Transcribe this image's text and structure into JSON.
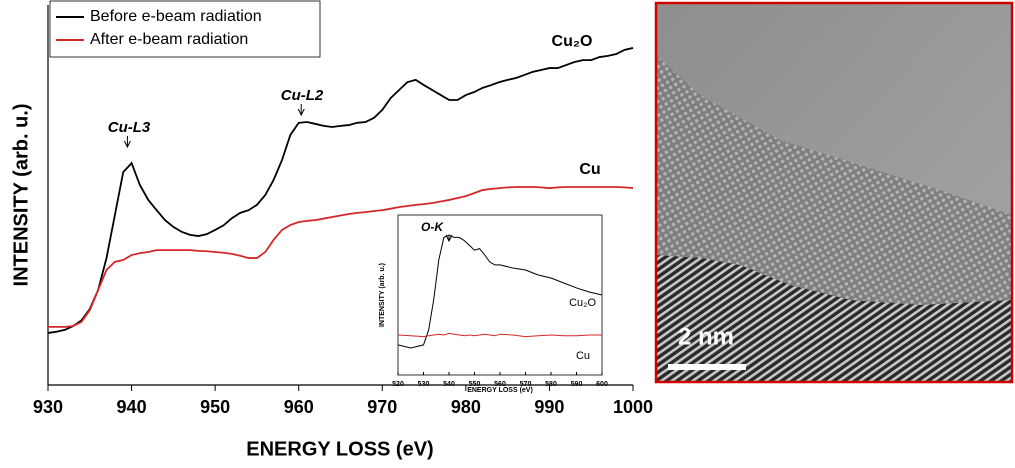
{
  "chart_data": [
    {
      "type": "line",
      "xlabel": "ENERGY LOSS (eV)",
      "ylabel": "INTENSITY (arb. u.)",
      "x": [
        930,
        931,
        932,
        933,
        934,
        935,
        936,
        937,
        938,
        939,
        940,
        941,
        942,
        943,
        944,
        945,
        946,
        947,
        948,
        949,
        950,
        951,
        952,
        953,
        954,
        955,
        956,
        957,
        958,
        959,
        960,
        961,
        962,
        963,
        964,
        965,
        966,
        967,
        968,
        969,
        970,
        971,
        972,
        973,
        974,
        975,
        976,
        977,
        978,
        979,
        980,
        981,
        982,
        983,
        984,
        985,
        986,
        987,
        988,
        989,
        990,
        991,
        992,
        993,
        994,
        995,
        996,
        997,
        998,
        999,
        1000
      ],
      "series": [
        {
          "name": "Before e-beam radiation",
          "color": "#000000",
          "values": [
            13.7,
            14,
            14.5,
            15.5,
            17,
            20,
            25,
            33.4,
            44.7,
            56,
            58.4,
            52.6,
            48.7,
            46,
            43.4,
            41.6,
            40.3,
            39.5,
            39.2,
            39.7,
            40.8,
            42,
            43.9,
            45.3,
            46,
            47.4,
            50,
            54,
            59.2,
            65.8,
            69,
            69.2,
            68.7,
            68.2,
            67.9,
            68.2,
            68.4,
            69,
            69.2,
            70.3,
            72.4,
            75.5,
            77.6,
            79.7,
            80.3,
            78.9,
            77.6,
            76.3,
            75,
            75,
            76.3,
            77.1,
            78.2,
            78.9,
            79.7,
            80.3,
            80.8,
            81.6,
            82.4,
            82.9,
            83.4,
            83.4,
            84.2,
            85,
            85.5,
            85.5,
            86.3,
            86.6,
            87.1,
            88.2,
            88.7
          ]
        },
        {
          "name": "After e-beam radiation",
          "color": "#d62728",
          "values": [
            15.3,
            15.3,
            15.3,
            15.5,
            16.6,
            19.7,
            25,
            30.3,
            32.4,
            32.9,
            34.2,
            34.7,
            35,
            35.5,
            35.5,
            35.5,
            35.5,
            35.5,
            35.3,
            35.2,
            35,
            34.8,
            34.5,
            34,
            33.4,
            33.4,
            35,
            38.2,
            40.8,
            42.1,
            42.9,
            43.2,
            43.4,
            43.8,
            44.2,
            44.6,
            45,
            45.3,
            45.5,
            45.8,
            46,
            46.4,
            46.8,
            47.1,
            47.4,
            47.6,
            47.9,
            48.3,
            48.7,
            49.2,
            49.7,
            50.5,
            51.3,
            51.6,
            51.8,
            52,
            52.1,
            52.1,
            52.1,
            52,
            51.8,
            52,
            52.1,
            52.1,
            52.1,
            52.1,
            52.1,
            52.1,
            52.1,
            52,
            51.8
          ]
        }
      ],
      "annotations": [
        "Cu-L3",
        "Cu-L2",
        "Cu₂O",
        "Cu"
      ],
      "xlim": [
        930,
        1000
      ],
      "xticks": [
        930,
        940,
        950,
        960,
        970,
        980,
        990,
        1000
      ],
      "ylim": [
        0,
        100
      ],
      "legend": "upper left"
    },
    {
      "type": "line",
      "xlabel": "ENERGY LOSS (eV)",
      "ylabel": "INTENSITY (arb. u.)",
      "x": [
        520,
        525,
        530,
        532,
        534,
        536,
        538,
        540,
        542,
        544,
        546,
        548,
        550,
        552,
        554,
        556,
        558,
        560,
        565,
        570,
        575,
        580,
        585,
        590,
        595,
        600
      ],
      "series": [
        {
          "name": "Cu₂O",
          "color": "#000000",
          "values": [
            18.8,
            16.9,
            18.8,
            28,
            47,
            72,
            86,
            87.5,
            86,
            86,
            84,
            81,
            78,
            79,
            75,
            70.6,
            68.8,
            68.8,
            66.9,
            65.6,
            62.5,
            60.6,
            57.5,
            54.4,
            51.9,
            50
          ]
        },
        {
          "name": "Cu",
          "color": "#d62728",
          "values": [
            25,
            24.5,
            24,
            24.5,
            25,
            25.5,
            25,
            26,
            25.5,
            25,
            24.5,
            25,
            24.5,
            25,
            25.5,
            25,
            24.5,
            25.5,
            25,
            24,
            24.5,
            25,
            24.5,
            24.5,
            25,
            25
          ]
        }
      ],
      "annotations": [
        "O-K"
      ],
      "xlim": [
        520,
        600
      ],
      "xticks": [
        520,
        530,
        540,
        550,
        560,
        570,
        580,
        590,
        600
      ],
      "ylim": [
        0,
        100
      ]
    }
  ],
  "image": {
    "scale_label": "2 nm"
  }
}
